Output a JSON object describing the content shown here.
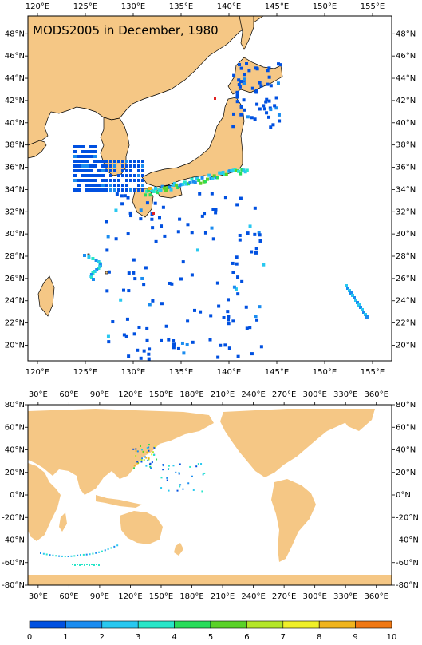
{
  "title": "MODS2005 in December, 1980",
  "colors": {
    "land": "#f5c785",
    "ocean": "#ffffff",
    "frame": "#000000"
  },
  "regional_map": {
    "lon_labels": [
      "120°E",
      "125°E",
      "130°E",
      "135°E",
      "140°E",
      "145°E",
      "150°E",
      "155°E"
    ],
    "lat_labels": [
      "48°N",
      "46°N",
      "44°N",
      "42°N",
      "40°N",
      "38°N",
      "36°N",
      "34°N",
      "32°N",
      "30°N",
      "28°N",
      "26°N",
      "24°N",
      "22°N",
      "20°N"
    ],
    "lon_range": [
      119,
      157
    ],
    "lat_range": [
      18.6,
      49.6
    ]
  },
  "global_map": {
    "lon_labels": [
      "30°E",
      "60°E",
      "90°E",
      "120°E",
      "150°E",
      "180°E",
      "210°E",
      "240°E",
      "270°E",
      "300°E",
      "330°E",
      "360°E"
    ],
    "lat_labels": [
      "80°N",
      "60°N",
      "40°N",
      "20°N",
      "0°N",
      "-20°N",
      "-40°N",
      "-60°N",
      "-80°N"
    ],
    "lon_range": [
      20,
      375
    ],
    "lat_range": [
      -80,
      80
    ]
  },
  "colorbar": {
    "tick_labels": [
      "0",
      "1",
      "2",
      "3",
      "4",
      "5",
      "6",
      "7",
      "8",
      "9",
      "10"
    ],
    "colors": [
      "#0050e0",
      "#1a8cf0",
      "#28c8f0",
      "#28e6c8",
      "#28dc5a",
      "#5ad228",
      "#b4e628",
      "#f0f028",
      "#f0b41e",
      "#f07814"
    ]
  }
}
